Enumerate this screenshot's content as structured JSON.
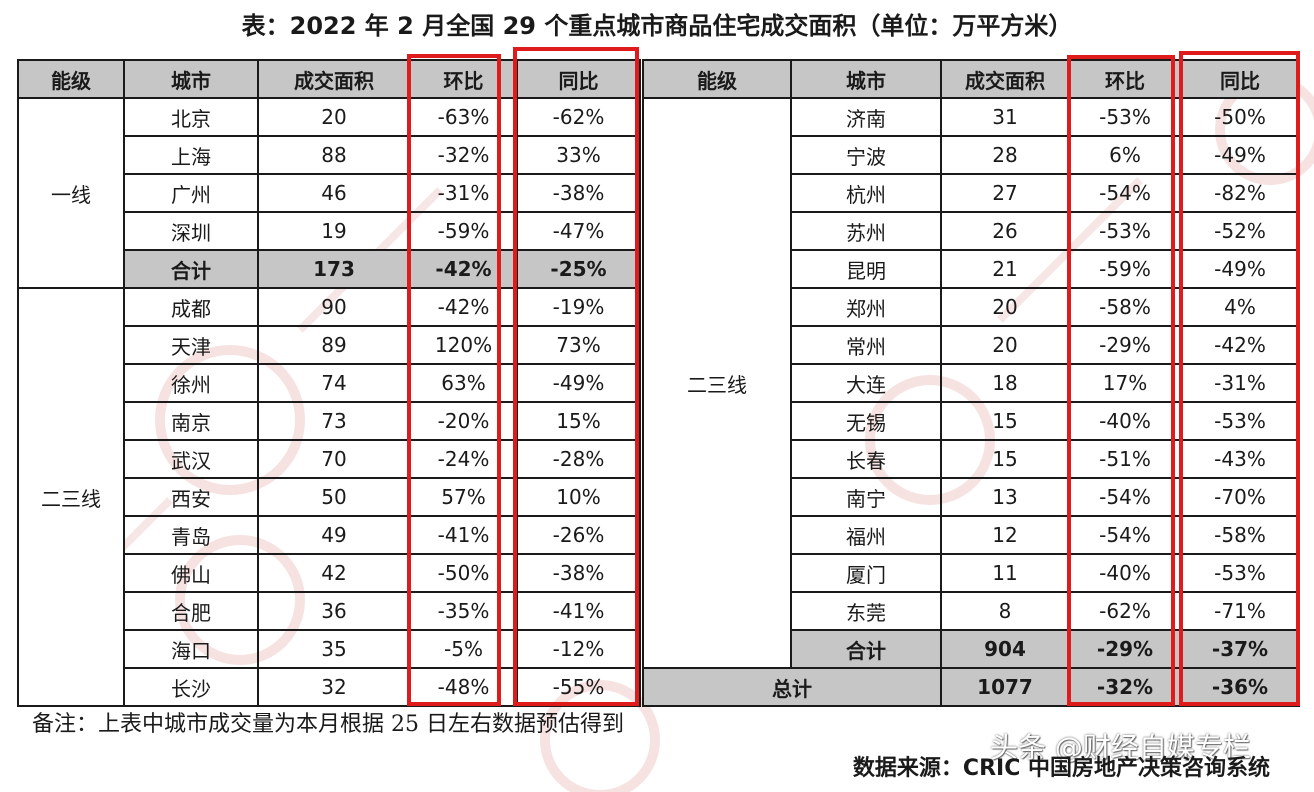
{
  "title": "表：2022 年 2 月全国 29 个重点城市商品住宅成交面积（单位：万平方米）",
  "headers": {
    "tier": "能级",
    "city": "城市",
    "area": "成交面积",
    "mom": "环比",
    "yoy": "同比"
  },
  "left": {
    "tier1_label": "一线",
    "tier1_rows": [
      {
        "city": "北京",
        "area": "20",
        "mom": "-63%",
        "yoy": "-62%"
      },
      {
        "city": "上海",
        "area": "88",
        "mom": "-32%",
        "yoy": "33%"
      },
      {
        "city": "广州",
        "area": "46",
        "mom": "-31%",
        "yoy": "-38%"
      },
      {
        "city": "深圳",
        "area": "19",
        "mom": "-59%",
        "yoy": "-47%"
      }
    ],
    "tier1_subtotal": {
      "label": "合计",
      "area": "173",
      "mom": "-42%",
      "yoy": "-25%"
    },
    "tier23_label": "二三线",
    "tier23_rows": [
      {
        "city": "成都",
        "area": "90",
        "mom": "-42%",
        "yoy": "-19%"
      },
      {
        "city": "天津",
        "area": "89",
        "mom": "120%",
        "yoy": "73%"
      },
      {
        "city": "徐州",
        "area": "74",
        "mom": "63%",
        "yoy": "-49%"
      },
      {
        "city": "南京",
        "area": "73",
        "mom": "-20%",
        "yoy": "15%"
      },
      {
        "city": "武汉",
        "area": "70",
        "mom": "-24%",
        "yoy": "-28%"
      },
      {
        "city": "西安",
        "area": "50",
        "mom": "57%",
        "yoy": "10%"
      },
      {
        "city": "青岛",
        "area": "49",
        "mom": "-41%",
        "yoy": "-26%"
      },
      {
        "city": "佛山",
        "area": "42",
        "mom": "-50%",
        "yoy": "-38%"
      },
      {
        "city": "合肥",
        "area": "36",
        "mom": "-35%",
        "yoy": "-41%"
      },
      {
        "city": "海口",
        "area": "35",
        "mom": "-5%",
        "yoy": "-12%"
      },
      {
        "city": "长沙",
        "area": "32",
        "mom": "-48%",
        "yoy": "-55%"
      }
    ]
  },
  "right": {
    "tier23_label": "二三线",
    "rows": [
      {
        "city": "济南",
        "area": "31",
        "mom": "-53%",
        "yoy": "-50%"
      },
      {
        "city": "宁波",
        "area": "28",
        "mom": "6%",
        "yoy": "-49%"
      },
      {
        "city": "杭州",
        "area": "27",
        "mom": "-54%",
        "yoy": "-82%"
      },
      {
        "city": "苏州",
        "area": "26",
        "mom": "-53%",
        "yoy": "-52%"
      },
      {
        "city": "昆明",
        "area": "21",
        "mom": "-59%",
        "yoy": "-49%"
      },
      {
        "city": "郑州",
        "area": "20",
        "mom": "-58%",
        "yoy": "4%"
      },
      {
        "city": "常州",
        "area": "20",
        "mom": "-29%",
        "yoy": "-42%"
      },
      {
        "city": "大连",
        "area": "18",
        "mom": "17%",
        "yoy": "-31%"
      },
      {
        "city": "无锡",
        "area": "15",
        "mom": "-40%",
        "yoy": "-53%"
      },
      {
        "city": "长春",
        "area": "15",
        "mom": "-51%",
        "yoy": "-43%"
      },
      {
        "city": "南宁",
        "area": "13",
        "mom": "-54%",
        "yoy": "-70%"
      },
      {
        "city": "福州",
        "area": "12",
        "mom": "-54%",
        "yoy": "-58%"
      },
      {
        "city": "厦门",
        "area": "11",
        "mom": "-40%",
        "yoy": "-53%"
      },
      {
        "city": "东莞",
        "area": "8",
        "mom": "-62%",
        "yoy": "-71%"
      }
    ],
    "tier23_subtotal": {
      "label": "合计",
      "area": "904",
      "mom": "-29%",
      "yoy": "-37%"
    },
    "grand_total": {
      "label": "总计",
      "area": "1077",
      "mom": "-32%",
      "yoy": "-36%"
    }
  },
  "note": "备注：上表中城市成交量为本月根据 25 日左右数据预估得到",
  "source": "数据来源：CRIC 中国房地产决策咨询系统",
  "author_tag": "头条 @财经自媒专栏",
  "colors": {
    "highlight_border": "#e01b1b",
    "header_fill": "#c6c6c6",
    "watermark": "#f3d6d6"
  }
}
